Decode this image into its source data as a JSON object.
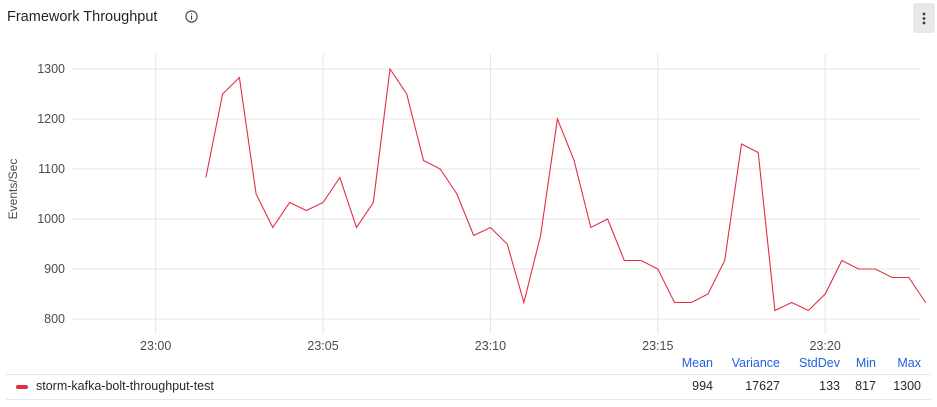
{
  "panel": {
    "title": "Framework Throughput",
    "info_icon": "info-circle-icon",
    "menu_icon": "vertical-dots-icon"
  },
  "chart_data": {
    "type": "line",
    "title": "",
    "ylabel": "Events/Sec",
    "xlabel": "",
    "x_ticks": [
      "23:00",
      "23:05",
      "23:10",
      "23:15",
      "23:20"
    ],
    "xlim": [
      "22:57:30",
      "23:22:50"
    ],
    "ylim": [
      770,
      1330
    ],
    "y_ticks": [
      800,
      900,
      1000,
      1100,
      1200,
      1300
    ],
    "grid": true,
    "legend_position": "bottom",
    "series": [
      {
        "name": "storm-kafka-bolt-throughput-test",
        "color": "#e02f44",
        "x": [
          "23:01:30",
          "23:02:00",
          "23:02:30",
          "23:03:00",
          "23:03:30",
          "23:04:00",
          "23:04:30",
          "23:05:00",
          "23:05:30",
          "23:06:00",
          "23:06:30",
          "23:07:00",
          "23:07:30",
          "23:08:00",
          "23:08:30",
          "23:09:00",
          "23:09:30",
          "23:10:00",
          "23:10:30",
          "23:11:00",
          "23:11:30",
          "23:12:00",
          "23:12:30",
          "23:13:00",
          "23:13:30",
          "23:14:00",
          "23:14:30",
          "23:15:00",
          "23:15:30",
          "23:16:00",
          "23:16:30",
          "23:17:00",
          "23:17:30",
          "23:18:00",
          "23:18:30",
          "23:19:00",
          "23:19:30",
          "23:20:00",
          "23:20:30",
          "23:21:00",
          "23:21:30",
          "23:22:00",
          "23:22:30",
          "23:23:00"
        ],
        "values": [
          1083,
          1250,
          1283,
          1050,
          983,
          1033,
          1017,
          1033,
          1083,
          983,
          1033,
          1300,
          1250,
          1117,
          1100,
          1050,
          967,
          983,
          950,
          833,
          967,
          1200,
          1117,
          983,
          1000,
          917,
          917,
          900,
          833,
          833,
          850,
          917,
          1150,
          1133,
          817,
          833,
          817,
          850,
          917,
          900,
          900,
          883,
          883,
          833
        ]
      }
    ]
  },
  "legend": {
    "stat_headers": [
      "Mean",
      "Variance",
      "StdDev",
      "Min",
      "Max"
    ],
    "items": [
      {
        "label": "storm-kafka-bolt-throughput-test",
        "color": "#e02f44",
        "stats": [
          "994",
          "17627",
          "133",
          "817",
          "1300"
        ]
      }
    ]
  }
}
